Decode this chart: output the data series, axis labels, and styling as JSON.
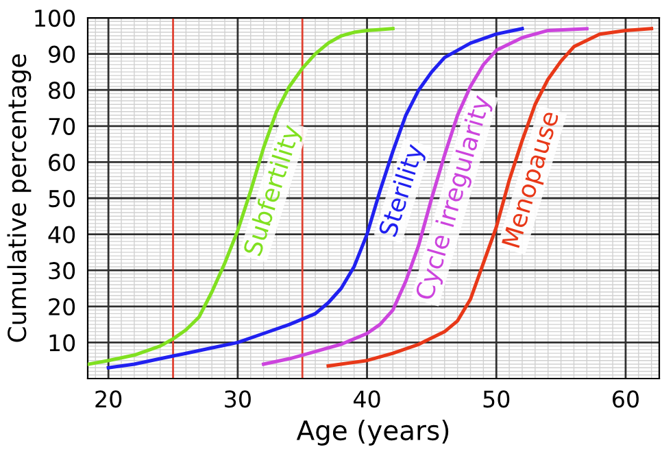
{
  "chart_data": {
    "type": "line",
    "xlabel": "Age (years)",
    "ylabel": "Cumulative percentage",
    "xlim": [
      18.4,
      62.6
    ],
    "ylim": [
      0,
      100
    ],
    "xticks": [
      20,
      30,
      40,
      50,
      60
    ],
    "yticks": [
      10,
      20,
      30,
      40,
      50,
      60,
      70,
      80,
      90,
      100
    ],
    "grid": true,
    "legend": false,
    "marker": "none",
    "line_style": "solid",
    "series": [
      {
        "name": "Subfertility",
        "color": "#80e020",
        "x": [
          18.5,
          20,
          22,
          24,
          25,
          26,
          27,
          28,
          29,
          30,
          31,
          32,
          33,
          34,
          35,
          36,
          37,
          38,
          39,
          40,
          42
        ],
        "values": [
          4,
          5,
          6.5,
          9,
          11,
          13.5,
          17,
          24,
          32,
          41,
          52,
          64,
          74,
          81,
          86,
          90,
          93,
          95,
          96,
          96.5,
          97
        ]
      },
      {
        "name": "Sterility",
        "color": "#2020f0",
        "x": [
          20,
          22,
          24,
          26,
          28,
          30,
          32,
          34,
          36,
          37,
          38,
          39,
          40,
          41,
          42,
          43,
          44,
          45,
          46,
          48,
          50,
          52
        ],
        "values": [
          3,
          4,
          5.5,
          7,
          8.5,
          10,
          12.5,
          15,
          18,
          21,
          25,
          31,
          40,
          52,
          63,
          73,
          80,
          85,
          89,
          93,
          95.5,
          97
        ]
      },
      {
        "name": "Cycle irregularity",
        "color": "#cc44dd",
        "x": [
          32,
          34,
          36,
          38,
          40,
          41,
          42,
          43,
          44,
          45,
          46,
          47,
          48,
          49,
          50,
          52,
          54,
          57
        ],
        "values": [
          4,
          5.5,
          7.5,
          9.5,
          12.5,
          15,
          19,
          27,
          37,
          50,
          62,
          73,
          81,
          87,
          91,
          94.5,
          96.5,
          97
        ]
      },
      {
        "name": "Menopause",
        "color": "#e83818",
        "x": [
          37,
          40,
          42,
          44,
          46,
          47,
          48,
          49,
          50,
          51,
          52,
          53,
          54,
          55,
          56,
          58,
          60,
          62
        ],
        "values": [
          3.5,
          5,
          7,
          9.5,
          13,
          16,
          22,
          32,
          42,
          55,
          66,
          76,
          83,
          88,
          92,
          95.5,
          96.5,
          97
        ]
      }
    ],
    "ref_lines": [
      {
        "axis": "x",
        "value": 25,
        "color": "#e04030"
      },
      {
        "axis": "x",
        "value": 35,
        "color": "#e04030"
      }
    ]
  }
}
